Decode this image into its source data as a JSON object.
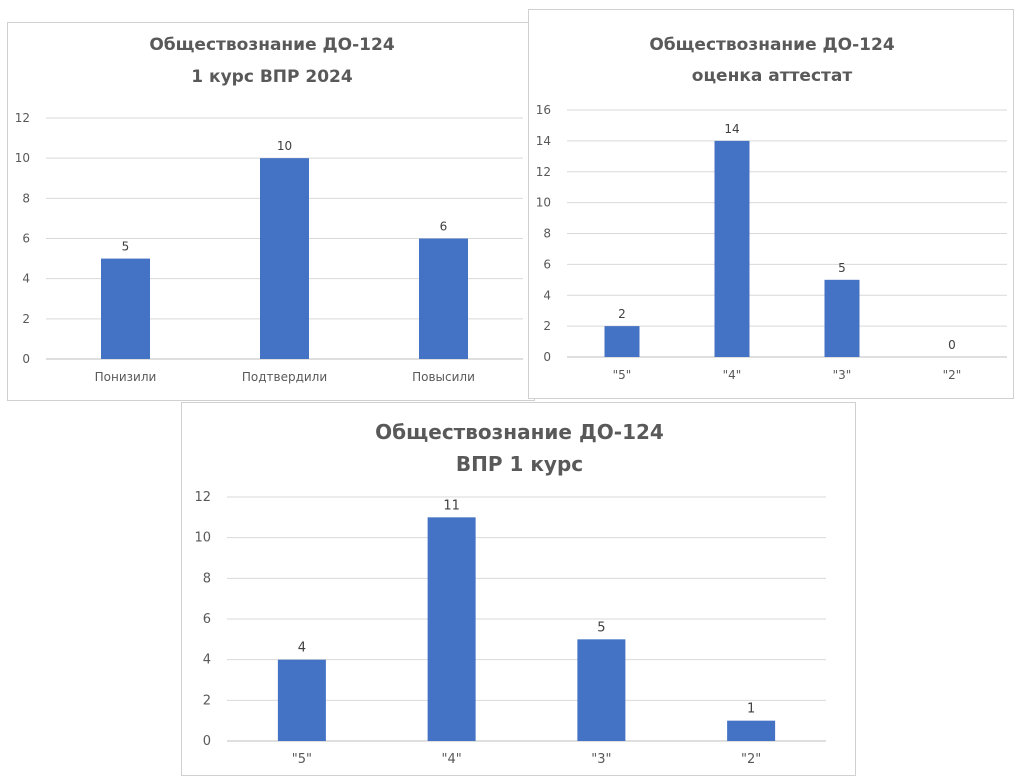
{
  "chart_data": [
    {
      "type": "bar",
      "title_lines": [
        "Обществознание ДО-124",
        "1 курс ВПР 2024"
      ],
      "categories": [
        "Понизили",
        "Подтвердили",
        "Повысили"
      ],
      "values": [
        5,
        10,
        6
      ],
      "ylim": [
        0,
        12
      ],
      "yticks": [
        0,
        2,
        4,
        6,
        8,
        10,
        12
      ],
      "grid": true,
      "bar_color": "#4472c4"
    },
    {
      "type": "bar",
      "title_lines": [
        "Обществознание ДО-124",
        "оценка аттестат"
      ],
      "categories": [
        "\"5\"",
        "\"4\"",
        "\"3\"",
        "\"2\""
      ],
      "values": [
        2,
        14,
        5,
        0
      ],
      "ylim": [
        0,
        16
      ],
      "yticks": [
        0,
        2,
        4,
        6,
        8,
        10,
        12,
        14,
        16
      ],
      "grid": true,
      "bar_color": "#4472c4"
    },
    {
      "type": "bar",
      "title_lines": [
        "Обществознание ДО-124",
        "ВПР 1 курс"
      ],
      "categories": [
        "\"5\"",
        "\"4\"",
        "\"3\"",
        "\"2\""
      ],
      "values": [
        4,
        11,
        5,
        1
      ],
      "ylim": [
        0,
        12
      ],
      "yticks": [
        0,
        2,
        4,
        6,
        8,
        10,
        12
      ],
      "grid": true,
      "bar_color": "#4472c4"
    }
  ]
}
